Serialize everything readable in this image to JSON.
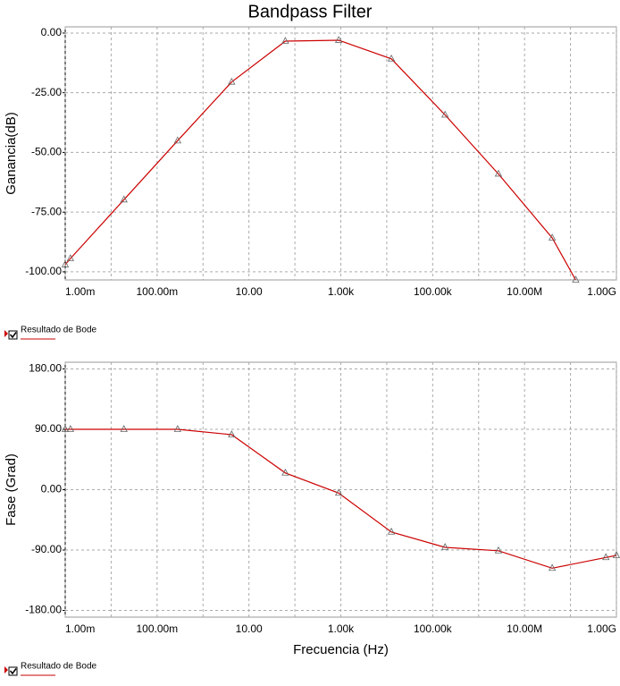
{
  "chart_data": [
    {
      "type": "line",
      "title": "Bandpass Filter",
      "y_label": "Ganancia(dB)",
      "log_x": true,
      "grid": true,
      "x": [
        0.001,
        0.0013,
        0.019,
        0.28,
        4.2,
        62,
        900,
        12600,
        186000,
        2700000,
        40000000,
        130000000
      ],
      "series": [
        {
          "name": "Resultado de Bode",
          "color": "#cc0000",
          "values": [
            -97,
            -94.4,
            -69.8,
            -45.1,
            -20.5,
            -3.4,
            -3.0,
            -10.8,
            -34.3,
            -59.0,
            -85.8,
            -103.4
          ]
        }
      ],
      "xlim": [
        0.001,
        1000000000
      ],
      "xticks": [
        {
          "value": 0.001,
          "label": "1.00m"
        },
        {
          "value": 0.1,
          "label": "100.00m"
        },
        {
          "value": 10,
          "label": "10.00"
        },
        {
          "value": 1000,
          "label": "1.00k"
        },
        {
          "value": 100000,
          "label": "100.00k"
        },
        {
          "value": 10000000,
          "label": "10.00M"
        },
        {
          "value": 1000000000,
          "label": "1.00G"
        }
      ],
      "xminor_ticks": [
        0.01,
        1,
        100,
        10000,
        1000000,
        100000000
      ],
      "ylim": [
        -103.4,
        2.6
      ],
      "yticks": [
        {
          "value": 0,
          "label": "0.00"
        },
        {
          "value": -25,
          "label": "-25.00"
        },
        {
          "value": -50,
          "label": "-50.00"
        },
        {
          "value": -75,
          "label": "-75.00"
        },
        {
          "value": -100,
          "label": "-100.00"
        }
      ]
    },
    {
      "type": "line",
      "y_label": "Fase (Grad)",
      "x_label": "Frecuencia (Hz)",
      "log_x": true,
      "grid": true,
      "x": [
        0.001,
        0.0013,
        0.019,
        0.28,
        4.2,
        62,
        900,
        12600,
        186000,
        2700000,
        40000000,
        590000000,
        1000000000
      ],
      "series": [
        {
          "name": "Resultado de Bode",
          "color": "#cc0000",
          "values": [
            90,
            90,
            90,
            90,
            82,
            25,
            -5,
            -63,
            -86,
            -91,
            -117,
            -101,
            -98
          ]
        }
      ],
      "xlim": [
        0.001,
        1000000000
      ],
      "xticks": [
        {
          "value": 0.001,
          "label": "1.00m"
        },
        {
          "value": 0.1,
          "label": "100.00m"
        },
        {
          "value": 10,
          "label": "10.00"
        },
        {
          "value": 1000,
          "label": "1.00k"
        },
        {
          "value": 100000,
          "label": "100.00k"
        },
        {
          "value": 10000000,
          "label": "10.00M"
        },
        {
          "value": 1000000000,
          "label": "1.00G"
        }
      ],
      "xminor_ticks": [
        0.01,
        1,
        100,
        10000,
        1000000,
        100000000
      ],
      "ylim": [
        -190,
        190
      ],
      "yticks": [
        {
          "value": 180,
          "label": "180.00"
        },
        {
          "value": 90,
          "label": "90.00"
        },
        {
          "value": 0,
          "label": "0.00"
        },
        {
          "value": -90,
          "label": "-90.00"
        },
        {
          "value": -180,
          "label": "-180.00"
        }
      ]
    }
  ]
}
